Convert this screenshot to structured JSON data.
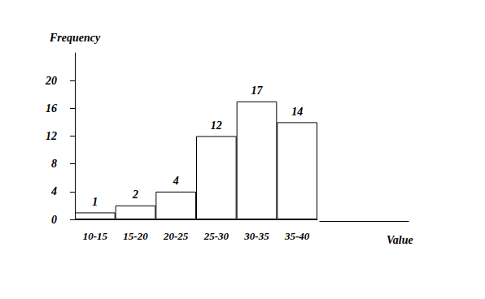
{
  "chart_data": {
    "type": "bar",
    "categories": [
      "10-15",
      "15-20",
      "20-25",
      "25-30",
      "30-35",
      "35-40"
    ],
    "values": [
      1,
      2,
      4,
      12,
      17,
      14
    ],
    "color": "#ffffff",
    "x_label": "Value",
    "y_label": "Frequency",
    "ylim": [
      0,
      24
    ],
    "yticks": [
      0,
      4,
      8,
      12,
      16,
      20
    ],
    "grid": false,
    "data_labels": true
  }
}
